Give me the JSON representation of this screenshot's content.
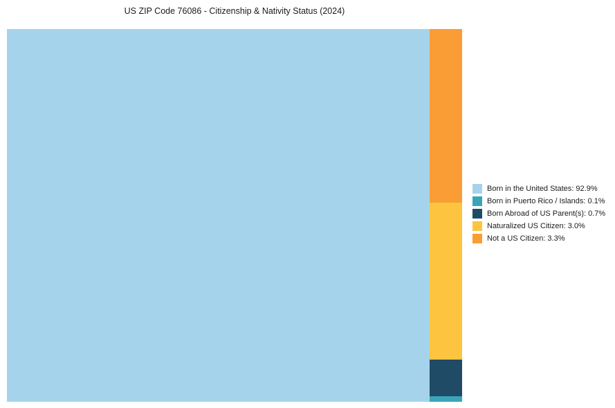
{
  "chart_data": {
    "type": "treemap",
    "title": "US ZIP Code 76086 - Citizenship & Nativity Status (2024)",
    "unit": "%",
    "slices": [
      {
        "label": "Born in the United States",
        "value": 92.9,
        "color": "#A6D3EC"
      },
      {
        "label": "Born in Puerto Rico / Islands",
        "value": 0.1,
        "color": "#3AA5B9"
      },
      {
        "label": "Born Abroad of US Parent(s)",
        "value": 0.7,
        "color": "#1F4B66"
      },
      {
        "label": "Naturalized US Citizen",
        "value": 3.0,
        "color": "#FDC53F"
      },
      {
        "label": "Not a US Citizen",
        "value": 3.3,
        "color": "#F99D34"
      }
    ],
    "layout": {
      "legend_position": "right-middle",
      "main_slice": "Born in the United States",
      "column_order": "descending-top-to-bottom",
      "grid": false,
      "axes": false
    }
  }
}
